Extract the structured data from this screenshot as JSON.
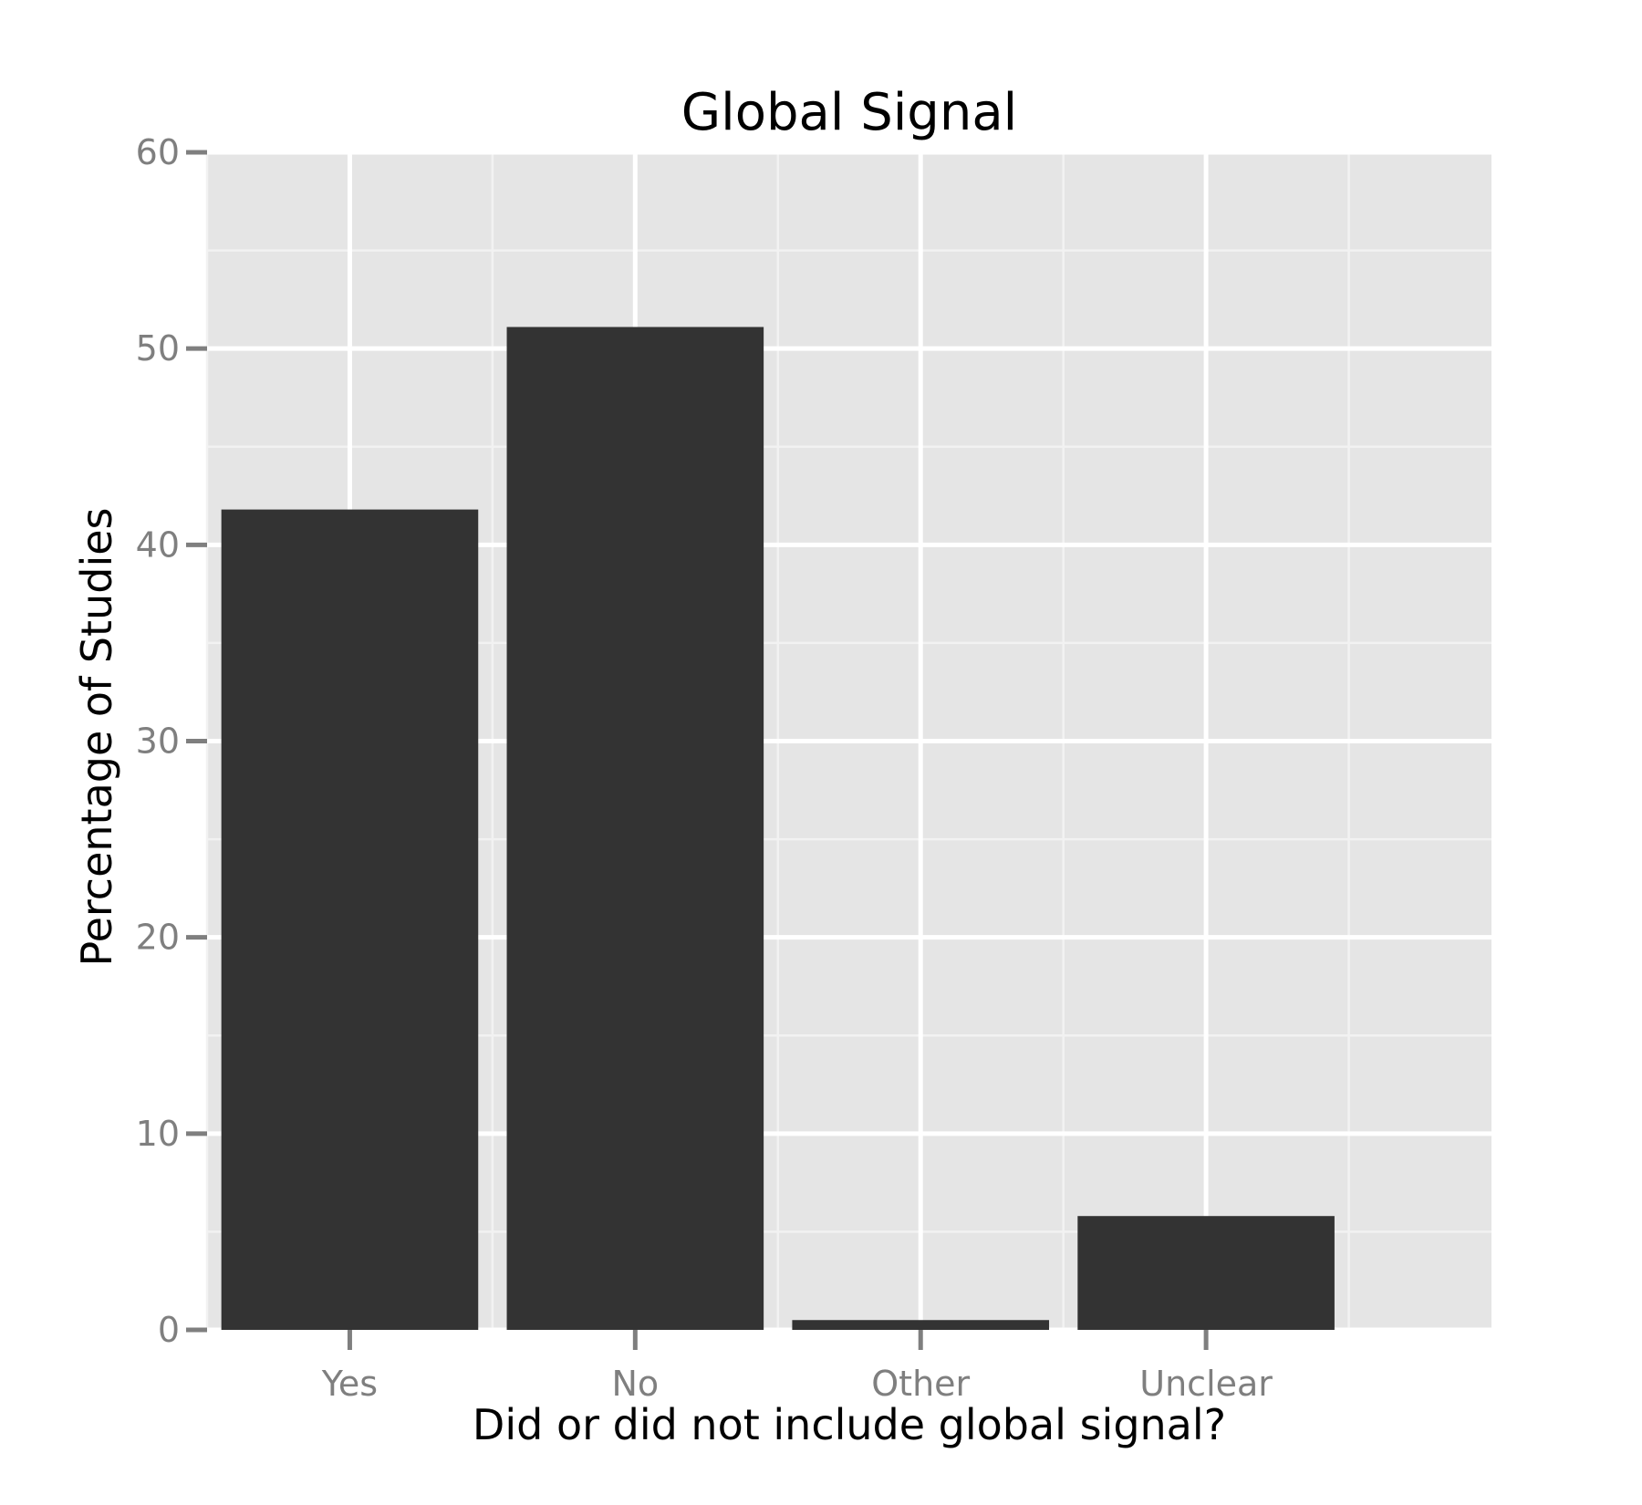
{
  "chart_data": {
    "type": "bar",
    "title": "Global Signal",
    "xlabel": "Did or did not include global signal?",
    "ylabel": "Percentage of Studies",
    "categories": [
      "Yes",
      "No",
      "Other",
      "Unclear"
    ],
    "values": [
      41.8,
      51.1,
      0.5,
      5.8
    ],
    "ylim": [
      0,
      60
    ],
    "yticks": [
      0,
      10,
      20,
      30,
      40,
      50,
      60
    ],
    "xlim": [
      0.5,
      5.0
    ],
    "grid": true,
    "legend": "none",
    "colors": {
      "bar": "#333333",
      "panel": "#e5e5e5",
      "grid_major": "#ffffff",
      "grid_minor": "#f2f2f2",
      "tick": "#7f7f7f"
    }
  }
}
